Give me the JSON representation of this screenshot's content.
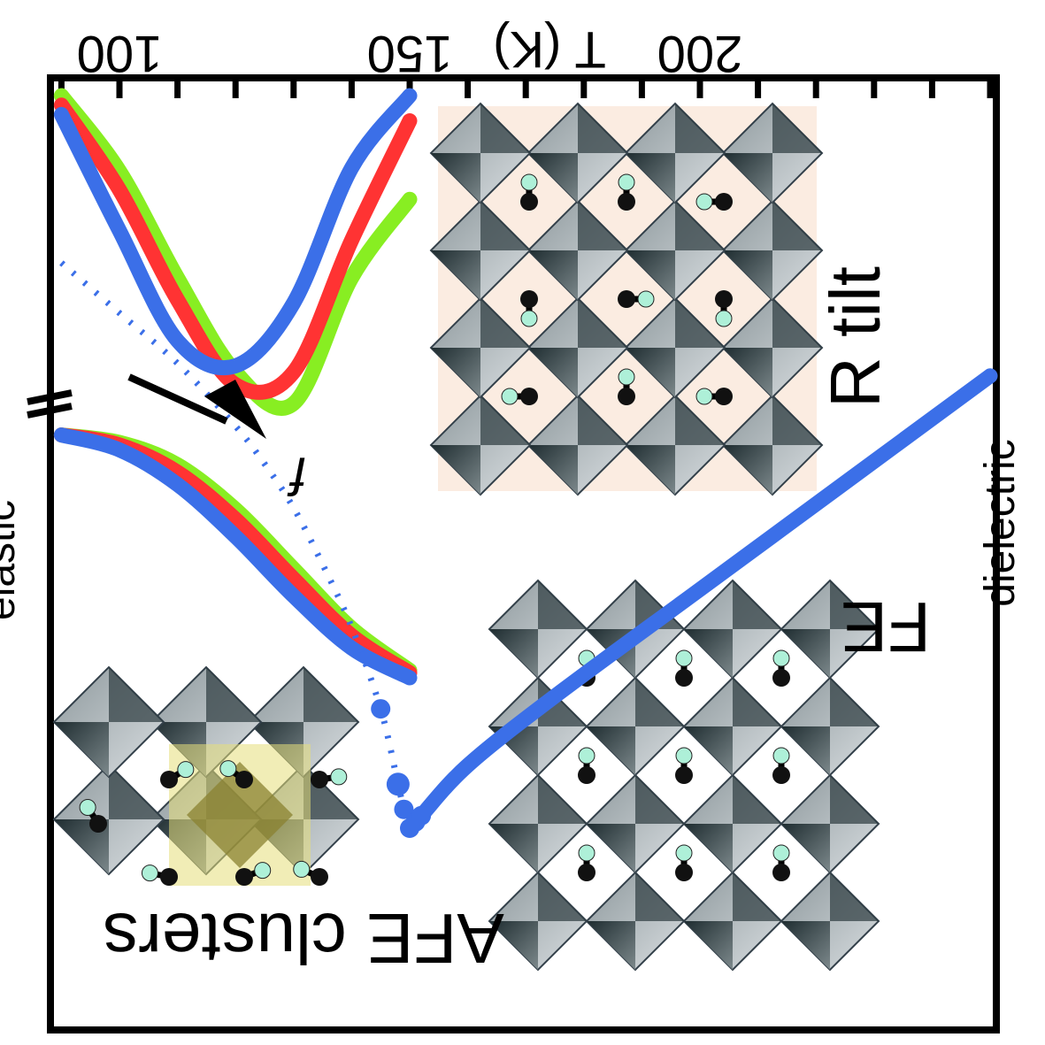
{
  "chart_data": {
    "type": "line",
    "xlabel": "T (K)",
    "x_ticks": [
      100,
      150,
      200
    ],
    "xlim": [
      90,
      250
    ],
    "left_axis_label": "elastic",
    "right_axis_label": "dielectric",
    "arrow_label": "f",
    "colors": {
      "green": "#88ee22",
      "red": "#ff3333",
      "blue": "#3b6fe8",
      "frame": "#000000"
    },
    "elastic_modulus_series": [
      {
        "color": "green",
        "x": [
          90,
          100,
          110,
          120,
          130,
          140,
          150
        ],
        "y": [
          0.98,
          0.95,
          0.86,
          0.68,
          0.44,
          0.2,
          0.03
        ]
      },
      {
        "color": "red",
        "x": [
          90,
          100,
          110,
          120,
          130,
          140,
          150
        ],
        "y": [
          0.98,
          0.94,
          0.83,
          0.64,
          0.4,
          0.17,
          0.02
        ]
      },
      {
        "color": "blue",
        "x": [
          90,
          100,
          110,
          120,
          130,
          140,
          150
        ],
        "y": [
          0.98,
          0.92,
          0.78,
          0.57,
          0.33,
          0.12,
          0.0
        ]
      }
    ],
    "elastic_loss_series": [
      {
        "color": "green",
        "x": [
          90,
          100,
          110,
          120,
          130,
          140,
          150
        ],
        "y": [
          0.98,
          0.74,
          0.4,
          0.1,
          0.0,
          0.4,
          0.65
        ]
      },
      {
        "color": "red",
        "x": [
          90,
          100,
          110,
          120,
          130,
          140,
          150
        ],
        "y": [
          0.95,
          0.68,
          0.33,
          0.06,
          0.1,
          0.52,
          0.9
        ]
      },
      {
        "color": "blue",
        "x": [
          90,
          100,
          110,
          120,
          130,
          140,
          150
        ],
        "y": [
          0.92,
          0.55,
          0.2,
          0.12,
          0.32,
          0.75,
          0.98
        ]
      }
    ],
    "dielectric_series": {
      "color": "blue",
      "x": [
        90,
        100,
        110,
        120,
        125,
        130,
        135,
        140,
        145,
        148,
        149,
        150,
        151,
        152,
        160,
        175,
        200,
        225,
        250
      ],
      "y": [
        0.9,
        0.82,
        0.74,
        0.64,
        0.58,
        0.51,
        0.42,
        0.32,
        0.19,
        0.07,
        0.03,
        0.0,
        0.01,
        0.02,
        0.1,
        0.21,
        0.38,
        0.55,
        0.72
      ]
    }
  },
  "labels": {
    "tilt": "R tilt",
    "fe": "FE",
    "afe": "AFE clusters"
  }
}
